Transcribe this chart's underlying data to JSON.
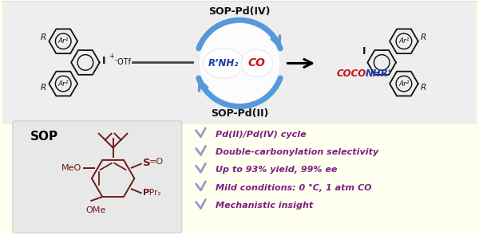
{
  "top_bg": "#eeeeee",
  "bottom_bg": "#fffff0",
  "bullet_color": "#9999cc",
  "text_color_purple": "#7b2080",
  "text_color_blue": "#1a3aaa",
  "text_color_red": "#cc1111",
  "text_color_black": "#111111",
  "bullet_items": [
    "Pd(II)/Pd(IV) cycle",
    "Double-carbonylation selectivity",
    "Up to 93% yield, 99% ee",
    "Mild conditions: 0 °C, 1 atm CO",
    "Mechanistic insight"
  ],
  "top_label_iv": "SOP-Pd(IV)",
  "top_label_ii": "SOP-Pd(II)",
  "circle_left_label": "R’NH₂",
  "circle_right_label": "CO",
  "sop_label": "SOP",
  "arrow_color": "#5599dd",
  "struct_color": "#111111",
  "sop_color": "#6b1a1a"
}
